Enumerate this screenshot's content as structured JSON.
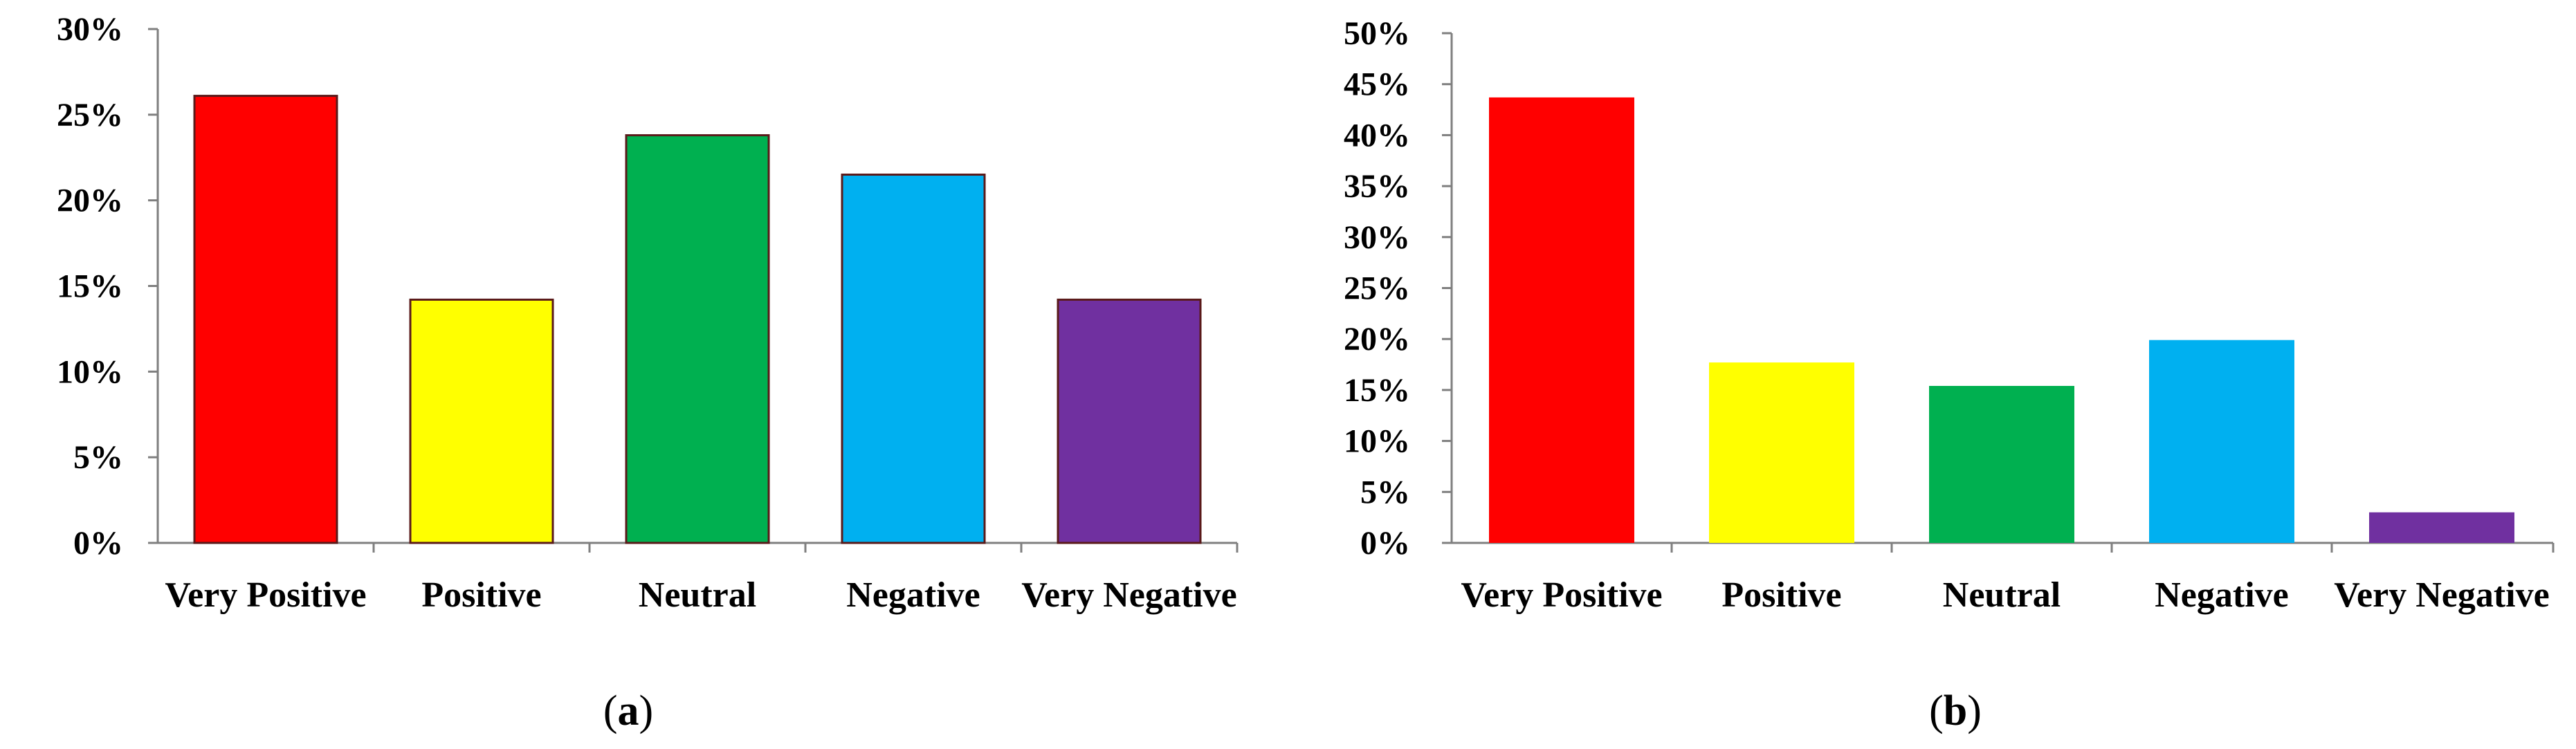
{
  "chart_data": [
    {
      "type": "bar",
      "panel_label": "a",
      "categories": [
        "Very Positive",
        "Positive",
        "Neutral",
        "Negative",
        "Very Negative"
      ],
      "values": [
        0.261,
        0.142,
        0.238,
        0.215,
        0.142
      ],
      "colors": [
        "#ff0000",
        "#ffff00",
        "#00b050",
        "#00b0f0",
        "#7030a0"
      ],
      "yticks": [
        "0%",
        "5%",
        "10%",
        "15%",
        "20%",
        "25%",
        "30%"
      ],
      "ylim": [
        0,
        0.3
      ],
      "ystep": 0.05,
      "title": "",
      "xlabel": "",
      "ylabel": "",
      "grid": false
    },
    {
      "type": "bar",
      "panel_label": "b",
      "categories": [
        "Very Positive",
        "Positive",
        "Neutral",
        "Negative",
        "Very Negative"
      ],
      "values": [
        0.437,
        0.177,
        0.154,
        0.199,
        0.03
      ],
      "colors": [
        "#ff0000",
        "#ffff00",
        "#00b050",
        "#00b0f0",
        "#7030a0"
      ],
      "yticks": [
        "0%",
        "5%",
        "10%",
        "15%",
        "20%",
        "25%",
        "30%",
        "35%",
        "40%",
        "45%",
        "50%"
      ],
      "ylim": [
        0,
        0.5
      ],
      "ystep": 0.05,
      "title": "",
      "xlabel": "",
      "ylabel": "",
      "grid": false
    }
  ]
}
